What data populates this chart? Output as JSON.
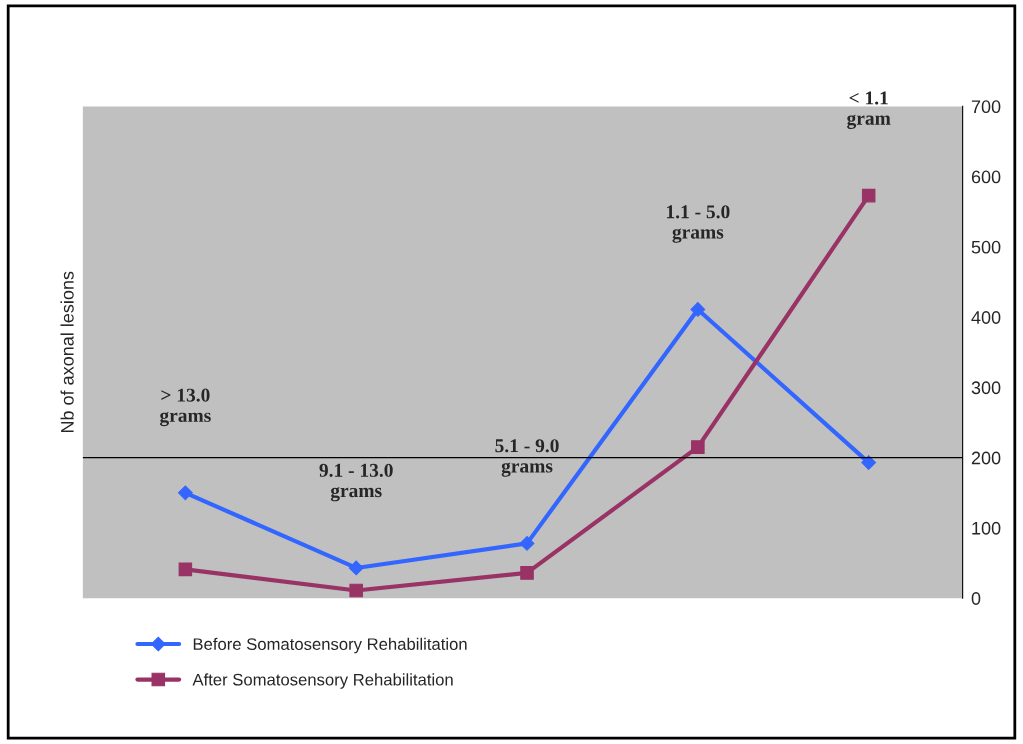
{
  "chart_data": {
    "type": "line",
    "ylabel": "Nb of axonal lesions",
    "categories": [
      "> 13.0\ngrams",
      "9.1 - 13.0\ngrams",
      "5.1 - 9.0\ngrams",
      "1.1 - 5.0\ngrams",
      "< 1.1\ngram"
    ],
    "series": [
      {
        "name": "Before Somatosensory Rehabilitation",
        "color": "#3366ff",
        "marker": "diamond",
        "values": [
          150,
          43,
          78,
          411,
          193
        ]
      },
      {
        "name": "After Somatosensory Rehabilitation",
        "color": "#993366",
        "marker": "square",
        "values": [
          41,
          11,
          36,
          215,
          573
        ]
      }
    ],
    "ylim": [
      0,
      700
    ],
    "yticks": [
      0,
      100,
      200,
      300,
      400,
      500,
      600,
      700
    ],
    "ref_lines": [
      {
        "axis": "y",
        "value": 200,
        "color": "#000000"
      }
    ],
    "grid": false,
    "legend": "bottom left"
  }
}
